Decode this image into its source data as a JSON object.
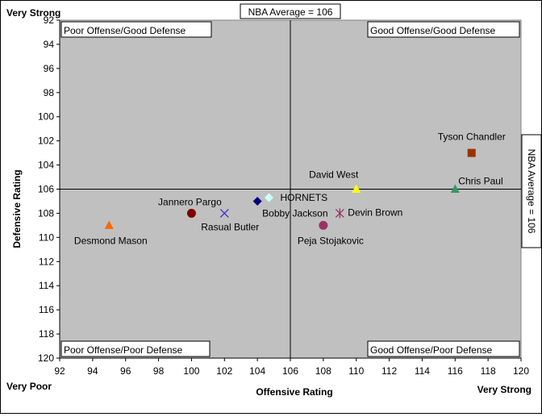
{
  "chart_data": {
    "type": "scatter",
    "xlabel": "Offensive Rating",
    "ylabel": "Defensive Rating",
    "xlim": [
      92,
      120
    ],
    "ylim": [
      92,
      120
    ],
    "y_inverted": true,
    "x_ticks": [
      92,
      94,
      96,
      98,
      100,
      102,
      104,
      106,
      108,
      110,
      112,
      114,
      116,
      118,
      120
    ],
    "y_ticks": [
      92,
      94,
      96,
      98,
      100,
      102,
      104,
      106,
      108,
      110,
      112,
      114,
      116,
      118,
      120
    ],
    "grid": false,
    "plot_background": "#c0c0c0",
    "axis_end_labels": {
      "top_left": "Very Strong",
      "bottom_left": "Very Poor",
      "bottom_right": "Very Strong"
    },
    "reference_lines": [
      {
        "orientation": "vertical",
        "value": 106,
        "label": "NBA Average = 106"
      },
      {
        "orientation": "horizontal",
        "value": 106,
        "label": "NBA Average = 106"
      }
    ],
    "quadrant_labels": {
      "top_left": "Poor Offense/Good Defense",
      "top_right": "Good Offense/Good Defense",
      "bottom_left": "Poor Offense/Poor Defense",
      "bottom_right": "Good Offense/Poor Defense"
    },
    "points": [
      {
        "label": "Tyson Chandler",
        "x": 117,
        "y": 103,
        "marker": "square",
        "color": "#993300",
        "label_dx": 0,
        "label_dy": -16,
        "anchor": "middle"
      },
      {
        "label": "Chris Paul",
        "x": 116,
        "y": 106,
        "marker": "triangle",
        "color": "#339966",
        "label_dx": 4,
        "label_dy": -6,
        "anchor": "start"
      },
      {
        "label": "David West",
        "x": 110,
        "y": 106,
        "marker": "triangle",
        "color": "#ffff00",
        "label_dx": -28,
        "label_dy": -14,
        "anchor": "middle"
      },
      {
        "label": "Jannero Pargo",
        "x": 100,
        "y": 108,
        "marker": "circle",
        "color": "#800000",
        "label_dx": -2,
        "label_dy": -10,
        "anchor": "middle"
      },
      {
        "label": "Desmond Mason",
        "x": 95,
        "y": 109,
        "marker": "triangle",
        "color": "#ff6600",
        "label_dx": 2,
        "label_dy": 23,
        "anchor": "middle"
      },
      {
        "label": "Rasual Butler",
        "x": 102,
        "y": 108,
        "marker": "x",
        "color": "#3333cc",
        "label_dx": 7,
        "label_dy": 21,
        "anchor": "middle"
      },
      {
        "label": "Bobby Jackson",
        "x": 104,
        "y": 107,
        "marker": "diamond",
        "color": "#000080",
        "label_dx": 6,
        "label_dy": 19,
        "anchor": "start"
      },
      {
        "label": "HORNETS",
        "x": 104.7,
        "y": 106.7,
        "marker": "diamond",
        "color": "#ccffff",
        "label_dx": 14,
        "label_dy": 4,
        "anchor": "start"
      },
      {
        "label": "Peja Stojakovic",
        "x": 108,
        "y": 109,
        "marker": "circle",
        "color": "#993366",
        "label_dx": 9,
        "label_dy": 23,
        "anchor": "middle"
      },
      {
        "label": "Devin Brown",
        "x": 109,
        "y": 108,
        "marker": "asterisk",
        "color": "#993366",
        "label_dx": 10,
        "label_dy": 3,
        "anchor": "start"
      }
    ]
  }
}
